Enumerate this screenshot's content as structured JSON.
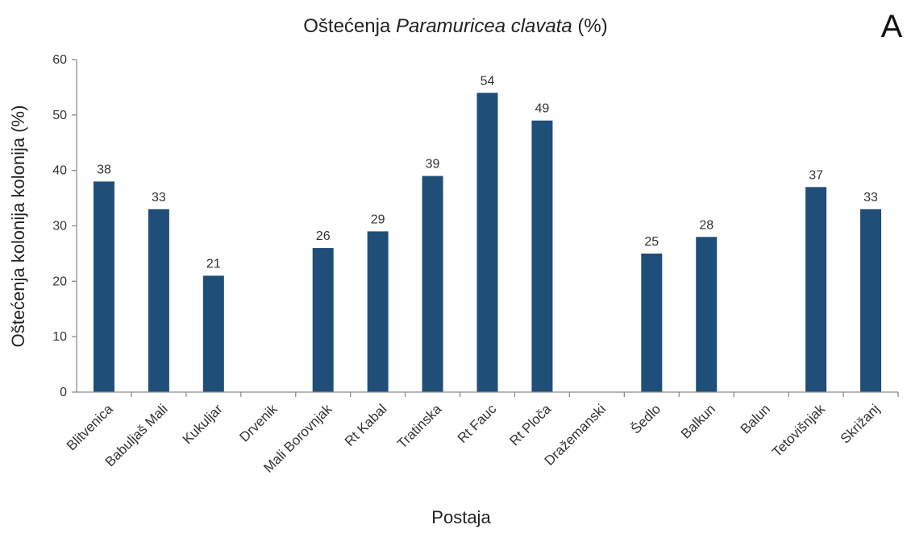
{
  "colors": {
    "bar": "#1f4e79",
    "axis": "#8c8c8c",
    "text": "#333333"
  },
  "chart_data": {
    "type": "bar",
    "title_plain": "Oštećenja ",
    "title_italic": "Paramuricea clavata",
    "title_suffix": " (%)",
    "panel_label": "A",
    "xlabel": "Postaja",
    "ylabel": "Oštećenja  kolonija kolonija (%)",
    "ylim": [
      0,
      60
    ],
    "yticks": [
      0,
      10,
      20,
      30,
      40,
      50,
      60
    ],
    "grid": false,
    "categories": [
      "Blitvenica",
      "Babuljaš Mali",
      "Kukuljar",
      "Drvenik",
      "Mali Borovnjak",
      "Rt Kabal",
      "Tratinska",
      "Rt Fauc",
      "Rt Ploča",
      "Dražemanski",
      "Šedlo",
      "Balkun",
      "Balun",
      "Tetovišnjak",
      "Skrižanj"
    ],
    "values": [
      38,
      33,
      21,
      null,
      26,
      29,
      39,
      54,
      49,
      null,
      25,
      28,
      null,
      37,
      33
    ],
    "data_labels": [
      "38",
      "33",
      "21",
      "",
      "26",
      "29",
      "39",
      "54",
      "49",
      "",
      "25",
      "28",
      "",
      "37",
      "33"
    ]
  }
}
